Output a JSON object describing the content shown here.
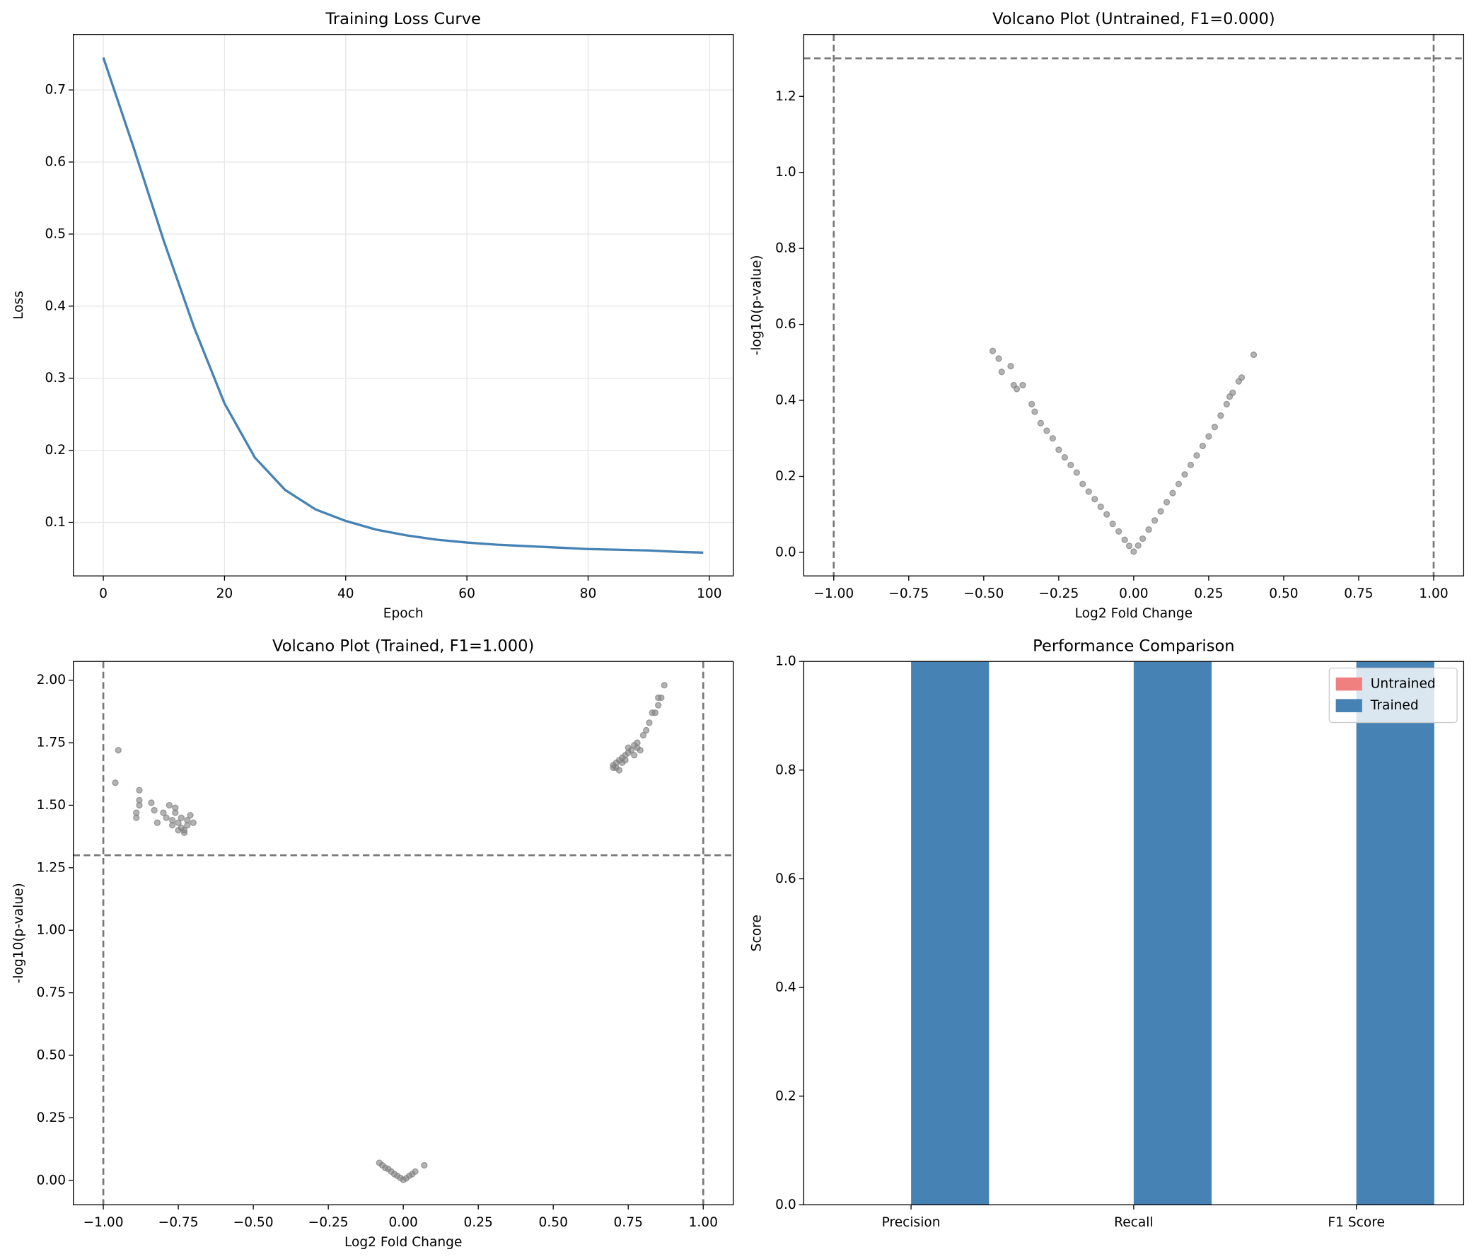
{
  "chart_data": [
    {
      "type": "line",
      "title": "Training Loss Curve",
      "x_label": "Epoch",
      "y_label": "Loss",
      "x": [
        0,
        5,
        10,
        15,
        20,
        25,
        30,
        35,
        40,
        45,
        50,
        55,
        60,
        65,
        70,
        75,
        80,
        85,
        90,
        95,
        99
      ],
      "values": [
        0.745,
        0.62,
        0.49,
        0.37,
        0.265,
        0.19,
        0.145,
        0.118,
        0.102,
        0.09,
        0.082,
        0.076,
        0.072,
        0.069,
        0.067,
        0.065,
        0.063,
        0.062,
        0.061,
        0.059,
        0.058
      ],
      "color": "#4682b4",
      "grid": true,
      "xlim": [
        -4.95,
        103.95
      ],
      "xticks": [
        0,
        20,
        40,
        60,
        80,
        100
      ],
      "ylim": [
        0.0257,
        0.777
      ],
      "yticks": [
        0.1,
        0.2,
        0.3,
        0.4,
        0.5,
        0.6,
        0.7
      ]
    },
    {
      "type": "scatter",
      "title": "Volcano Plot (Untrained, F1=0.000)",
      "x_label": "Log2 Fold Change",
      "y_label": "-log10(p-value)",
      "x": [
        -0.47,
        -0.45,
        -0.44,
        -0.41,
        -0.4,
        -0.39,
        -0.37,
        -0.34,
        -0.33,
        -0.31,
        -0.29,
        -0.27,
        -0.25,
        -0.23,
        -0.21,
        -0.19,
        -0.17,
        -0.15,
        -0.13,
        -0.11,
        -0.09,
        -0.07,
        -0.05,
        -0.03,
        -0.015,
        0,
        0.015,
        0.03,
        0.05,
        0.07,
        0.09,
        0.11,
        0.13,
        0.15,
        0.17,
        0.19,
        0.21,
        0.23,
        0.25,
        0.27,
        0.29,
        0.31,
        0.32,
        0.33,
        0.35,
        0.36,
        0.4
      ],
      "values": [
        0.53,
        0.51,
        0.475,
        0.49,
        0.44,
        0.43,
        0.44,
        0.39,
        0.37,
        0.34,
        0.32,
        0.3,
        0.27,
        0.25,
        0.23,
        0.21,
        0.18,
        0.16,
        0.14,
        0.12,
        0.1,
        0.075,
        0.055,
        0.033,
        0.017,
        0.002,
        0.018,
        0.036,
        0.06,
        0.084,
        0.108,
        0.132,
        0.156,
        0.18,
        0.205,
        0.23,
        0.255,
        0.28,
        0.305,
        0.33,
        0.36,
        0.39,
        0.41,
        0.42,
        0.45,
        0.46,
        0.52
      ],
      "color": "#808080",
      "grid": false,
      "vlines": [
        -1,
        1
      ],
      "hlines": [
        1.3
      ],
      "xlim": [
        -1.1,
        1.1
      ],
      "xticks": [
        {
          "value": -1,
          "label": "−1.00"
        },
        {
          "value": -0.75,
          "label": "−0.75"
        },
        {
          "value": -0.5,
          "label": "−0.50"
        },
        {
          "value": -0.25,
          "label": "−0.25"
        },
        {
          "value": 0,
          "label": "0.00"
        },
        0.25,
        {
          "value": 0.5,
          "label": "0.50"
        },
        0.75,
        {
          "value": 1,
          "label": "1.00"
        }
      ],
      "ylim": [
        -0.062,
        1.363
      ],
      "yticks": [
        {
          "value": 0,
          "label": "0.0"
        },
        0.2,
        0.4,
        0.6,
        0.8,
        {
          "value": 1,
          "label": "1.0"
        },
        1.2
      ]
    },
    {
      "type": "scatter",
      "title": "Volcano Plot (Trained, F1=1.000)",
      "x_label": "Log2 Fold Change",
      "y_label": "-log10(p-value)",
      "x": [
        -0.96,
        -0.95,
        -0.88,
        -0.88,
        -0.88,
        -0.89,
        -0.89,
        -0.84,
        -0.83,
        -0.82,
        -0.8,
        -0.79,
        -0.78,
        -0.77,
        -0.77,
        -0.76,
        -0.76,
        -0.75,
        -0.75,
        -0.74,
        -0.73,
        -0.72,
        -0.72,
        -0.71,
        -0.7,
        -0.74,
        -0.73,
        0.7,
        0.7,
        0.71,
        0.71,
        0.72,
        0.72,
        0.73,
        0.73,
        0.74,
        0.74,
        0.75,
        0.75,
        0.76,
        0.77,
        0.77,
        0.78,
        0.78,
        0.79,
        0.8,
        0.81,
        0.82,
        0.83,
        0.84,
        0.85,
        0.85,
        0.86,
        0.87,
        -0.08,
        -0.07,
        -0.06,
        -0.05,
        -0.04,
        -0.03,
        -0.02,
        -0.01,
        0,
        0.01,
        0.02,
        0.03,
        0.04,
        0.07
      ],
      "values": [
        1.59,
        1.72,
        1.56,
        1.52,
        1.5,
        1.47,
        1.45,
        1.51,
        1.48,
        1.43,
        1.47,
        1.45,
        1.5,
        1.44,
        1.42,
        1.49,
        1.47,
        1.43,
        1.4,
        1.41,
        1.39,
        1.42,
        1.44,
        1.46,
        1.43,
        1.45,
        1.4,
        1.65,
        1.66,
        1.67,
        1.65,
        1.68,
        1.64,
        1.69,
        1.67,
        1.7,
        1.68,
        1.71,
        1.73,
        1.72,
        1.74,
        1.7,
        1.73,
        1.75,
        1.72,
        1.78,
        1.8,
        1.83,
        1.87,
        1.87,
        1.9,
        1.93,
        1.93,
        1.98,
        0.07,
        0.06,
        0.05,
        0.045,
        0.035,
        0.025,
        0.018,
        0.01,
        0.002,
        0.008,
        0.018,
        0.025,
        0.035,
        0.06
      ],
      "color": "#808080",
      "grid": false,
      "vlines": [
        -1,
        1
      ],
      "hlines": [
        1.3
      ],
      "xlim": [
        -1.1,
        1.1
      ],
      "xticks": [
        {
          "value": -1,
          "label": "−1.00"
        },
        {
          "value": -0.75,
          "label": "−0.75"
        },
        {
          "value": -0.5,
          "label": "−0.50"
        },
        {
          "value": -0.25,
          "label": "−0.25"
        },
        {
          "value": 0,
          "label": "0.00"
        },
        0.25,
        {
          "value": 0.5,
          "label": "0.50"
        },
        0.75,
        {
          "value": 1,
          "label": "1.00"
        }
      ],
      "ylim": [
        -0.098,
        2.075
      ],
      "yticks": [
        {
          "value": 0,
          "label": "0.00"
        },
        0.25,
        {
          "value": 0.5,
          "label": "0.50"
        },
        0.75,
        {
          "value": 1,
          "label": "1.00"
        },
        1.25,
        {
          "value": 1.5,
          "label": "1.50"
        },
        1.75,
        {
          "value": 2,
          "label": "2.00"
        }
      ]
    },
    {
      "type": "bar",
      "title": "Performance Comparison",
      "y_label": "Score",
      "categories": [
        "Precision",
        "Recall",
        "F1 Score"
      ],
      "series": [
        {
          "name": "Untrained",
          "color": "#f08080",
          "values": [
            0,
            0,
            0
          ]
        },
        {
          "name": "Trained",
          "color": "#4682b4",
          "values": [
            1,
            1,
            1
          ]
        }
      ],
      "grid": false,
      "legend": "upper right",
      "ylim": [
        0,
        1
      ],
      "yticks": [
        {
          "value": 0,
          "label": "0.0"
        },
        0.2,
        0.4,
        0.6,
        0.8,
        {
          "value": 1,
          "label": "1.0"
        }
      ]
    }
  ]
}
